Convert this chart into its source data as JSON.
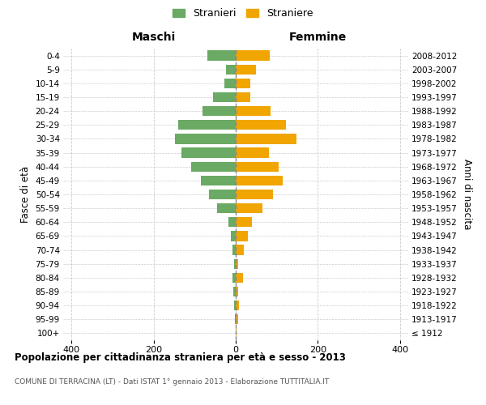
{
  "age_groups": [
    "100+",
    "95-99",
    "90-94",
    "85-89",
    "80-84",
    "75-79",
    "70-74",
    "65-69",
    "60-64",
    "55-59",
    "50-54",
    "45-49",
    "40-44",
    "35-39",
    "30-34",
    "25-29",
    "20-24",
    "15-19",
    "10-14",
    "5-9",
    "0-4"
  ],
  "birth_years": [
    "≤ 1912",
    "1913-1917",
    "1918-1922",
    "1923-1927",
    "1928-1932",
    "1933-1937",
    "1938-1942",
    "1943-1947",
    "1948-1952",
    "1953-1957",
    "1958-1962",
    "1963-1967",
    "1968-1972",
    "1973-1977",
    "1978-1982",
    "1983-1987",
    "1988-1992",
    "1993-1997",
    "1998-2002",
    "2003-2007",
    "2008-2012"
  ],
  "maschi": [
    0,
    1,
    3,
    5,
    7,
    4,
    8,
    11,
    18,
    45,
    65,
    85,
    108,
    133,
    148,
    140,
    80,
    55,
    28,
    24,
    70
  ],
  "femmine": [
    1,
    5,
    7,
    6,
    18,
    5,
    20,
    30,
    40,
    65,
    90,
    115,
    105,
    80,
    148,
    122,
    85,
    35,
    35,
    50,
    82
  ],
  "color_maschi": "#6aaa64",
  "color_femmine": "#f0a500",
  "bg_color": "#ffffff",
  "grid_color": "#cccccc",
  "title": "Popolazione per cittadinanza straniera per età e sesso - 2013",
  "subtitle": "COMUNE DI TERRACINA (LT) - Dati ISTAT 1° gennaio 2013 - Elaborazione TUTTITALIA.IT",
  "header_maschi": "Maschi",
  "header_femmine": "Femmine",
  "ylabel_left": "Fasce di età",
  "ylabel_right": "Anni di nascita",
  "legend_maschi": "Stranieri",
  "legend_femmine": "Straniere",
  "xlim": 420,
  "xtick_positions": [
    -400,
    -200,
    0,
    200,
    400
  ]
}
